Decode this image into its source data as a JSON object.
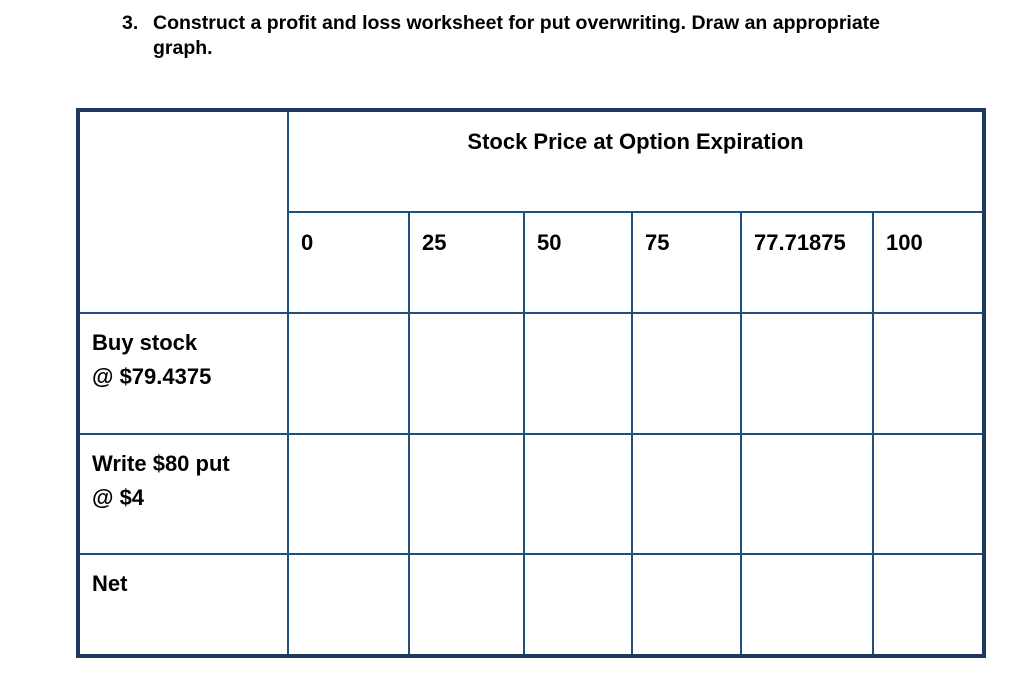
{
  "question": {
    "number": "3.",
    "text": "Construct a profit and loss worksheet for put overwriting. Draw an appropriate graph."
  },
  "table": {
    "header": "Stock Price at Option Expiration",
    "prices": [
      "0",
      "25",
      "50",
      "75",
      "77.71875",
      "100"
    ],
    "rows": [
      {
        "label_line1": "Buy stock",
        "label_line2": "@ $79.4375"
      },
      {
        "label_line1": "Write $80 put",
        "label_line2": "@ $4"
      },
      {
        "label_line1": "Net",
        "label_line2": ""
      }
    ]
  },
  "colors": {
    "outer_border": "#1e3a5f",
    "inner_border": "#1e4f80",
    "text": "#000000"
  }
}
